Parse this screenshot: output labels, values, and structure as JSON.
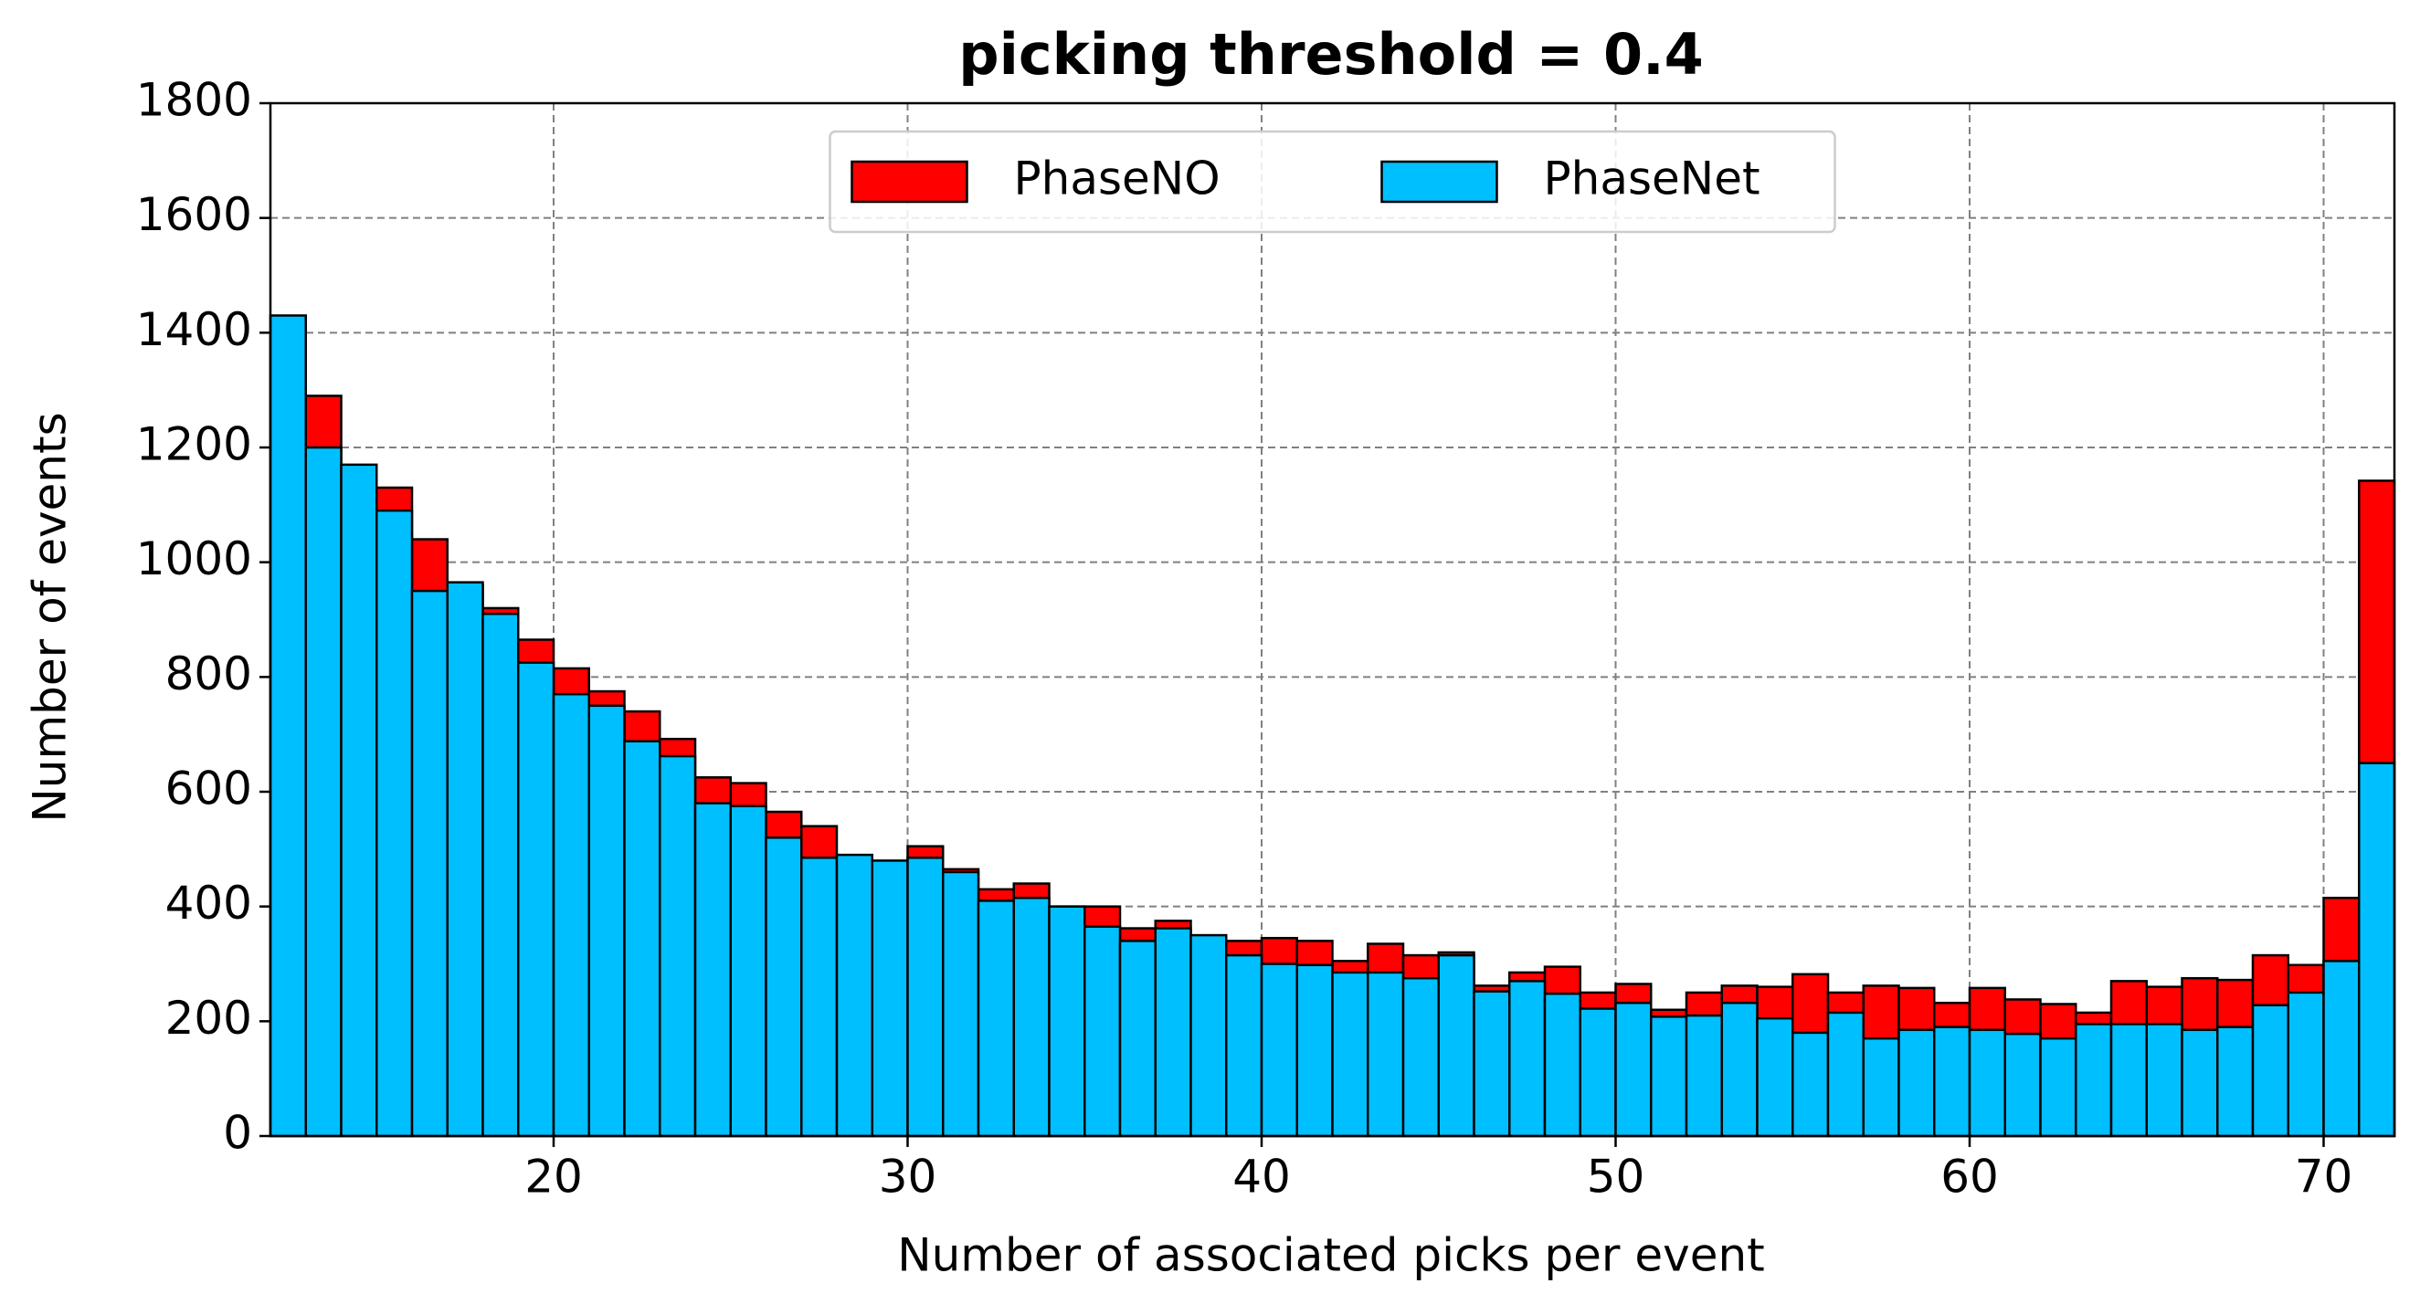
{
  "chart_data": {
    "type": "histogram",
    "title": "picking threshold = 0.4",
    "xlabel": "Number of associated picks per event",
    "ylabel": "Number of events",
    "bins": [
      12,
      13,
      14,
      15,
      16,
      17,
      18,
      19,
      20,
      21,
      22,
      23,
      24,
      25,
      26,
      27,
      28,
      29,
      30,
      31,
      32,
      33,
      34,
      35,
      36,
      37,
      38,
      39,
      40,
      41,
      42,
      43,
      44,
      45,
      46,
      47,
      48,
      49,
      50,
      51,
      52,
      53,
      54,
      55,
      56,
      57,
      58,
      59,
      60,
      61,
      62,
      63,
      64,
      65,
      66,
      67,
      68,
      69,
      70,
      71,
      72
    ],
    "series": [
      {
        "name": "PhaseNO",
        "color": "#ff0000",
        "values": [
          1400,
          1290,
          1165,
          1130,
          1040,
          960,
          920,
          865,
          815,
          775,
          740,
          692,
          625,
          615,
          565,
          540,
          485,
          475,
          505,
          465,
          430,
          440,
          400,
          400,
          362,
          375,
          345,
          340,
          345,
          340,
          305,
          335,
          315,
          320,
          262,
          285,
          295,
          250,
          265,
          220,
          250,
          262,
          260,
          282,
          250,
          262,
          258,
          232,
          258,
          238,
          230,
          215,
          270,
          260,
          275,
          272,
          315,
          298,
          415,
          1142
        ]
      },
      {
        "name": "PhaseNet",
        "color": "#00bfff",
        "values": [
          1430,
          1200,
          1170,
          1090,
          950,
          965,
          910,
          825,
          770,
          750,
          688,
          662,
          580,
          575,
          520,
          485,
          490,
          480,
          485,
          460,
          410,
          415,
          400,
          365,
          340,
          362,
          350,
          315,
          300,
          298,
          285,
          285,
          275,
          315,
          252,
          270,
          248,
          222,
          232,
          208,
          210,
          232,
          205,
          180,
          215,
          170,
          185,
          190,
          185,
          178,
          170,
          195,
          195,
          195,
          185,
          190,
          228,
          250,
          305,
          650
        ]
      }
    ],
    "xlim": [
      12,
      72
    ],
    "ylim": [
      0,
      1800
    ],
    "xticks": [
      20,
      30,
      40,
      50,
      60,
      70
    ],
    "yticks": [
      0,
      200,
      400,
      600,
      800,
      1000,
      1200,
      1400,
      1600,
      1800
    ],
    "grid": true,
    "legend": "upper center",
    "legend_columns": 2
  }
}
